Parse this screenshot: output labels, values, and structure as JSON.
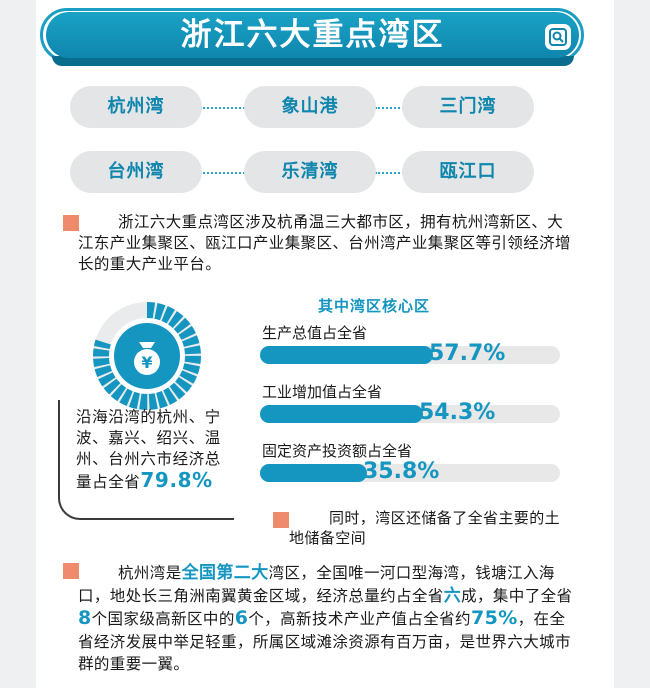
{
  "title": "浙江六大重点湾区",
  "bays": [
    "杭州湾",
    "象山港",
    "三门湾",
    "台州湾",
    "乐清湾",
    "瓯江口"
  ],
  "intro": "浙江六大重点湾区涉及杭甬温三大都市区，拥有杭州湾新区、大江东产业集聚区、瓯江口产业集聚区、台州湾产业集聚区等引领经济增长的重大产业平台。",
  "coastal": {
    "text_prefix": "沿海沿湾的杭州、宁波、嘉兴、绍兴、温州、台州六市经济总量占全省",
    "value": "79.8%",
    "fraction": 0.798
  },
  "core": {
    "title": "其中湾区核心区",
    "metrics": [
      {
        "label": "生产总值占全省",
        "value": "57.7%",
        "fraction": 0.577
      },
      {
        "label": "工业增加值占全省",
        "value": "54.3%",
        "fraction": 0.543
      },
      {
        "label": "固定资产投资额占全省",
        "value": "35.8%",
        "fraction": 0.358
      }
    ]
  },
  "note": "同时，湾区还储备了全省主要的土地储备空间",
  "hangzhou": {
    "p1": "杭州湾是",
    "h1": "全国第二大",
    "p2": "湾区，全国唯一河口型海湾，钱塘江入海口，地处长三角洲南翼黄金区域，经济总量约占全省",
    "h2": "六",
    "p3": "成，集中了全省",
    "h3": "8",
    "p4": "个国家级高新区中的",
    "h4": "6",
    "p5": "个，高新技术产业产值占全省约",
    "h5": "75%",
    "p6": "，在全省经济发展中举足轻重，所属区域滩涂资源有百万亩，是世界六大城市群的重要一翼。"
  },
  "colors": {
    "accent": "#1596c1",
    "marker": "#ef8a6c",
    "pill_bg": "#e3e5e7"
  },
  "icons": [
    "zoom-icon",
    "money-bag-icon"
  ]
}
